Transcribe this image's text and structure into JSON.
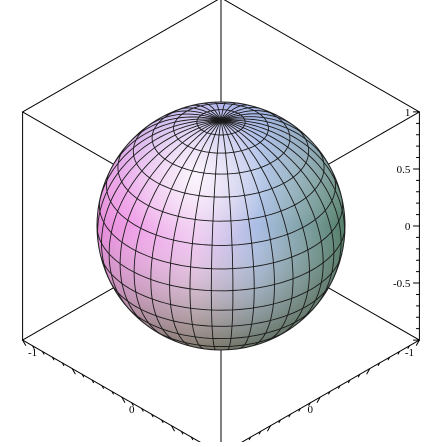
{
  "chart_data": {
    "type": "surface3d",
    "surface": "unit sphere",
    "coloring": "hue shaded (magenta / blue / green)",
    "mesh": {
      "latitude_lines": 16,
      "longitude_lines": 36
    },
    "box": "full bounding box",
    "axes": {
      "z": {
        "range": [
          -1,
          1
        ],
        "tick_labels": [
          "1",
          "0.5",
          "0",
          "-0.5"
        ]
      },
      "x": {
        "range": [
          -1,
          1
        ],
        "tick_labels": [
          "-1",
          "0"
        ]
      },
      "y": {
        "range": [
          -1,
          1
        ],
        "tick_labels": [
          "0",
          "-1"
        ]
      }
    }
  }
}
